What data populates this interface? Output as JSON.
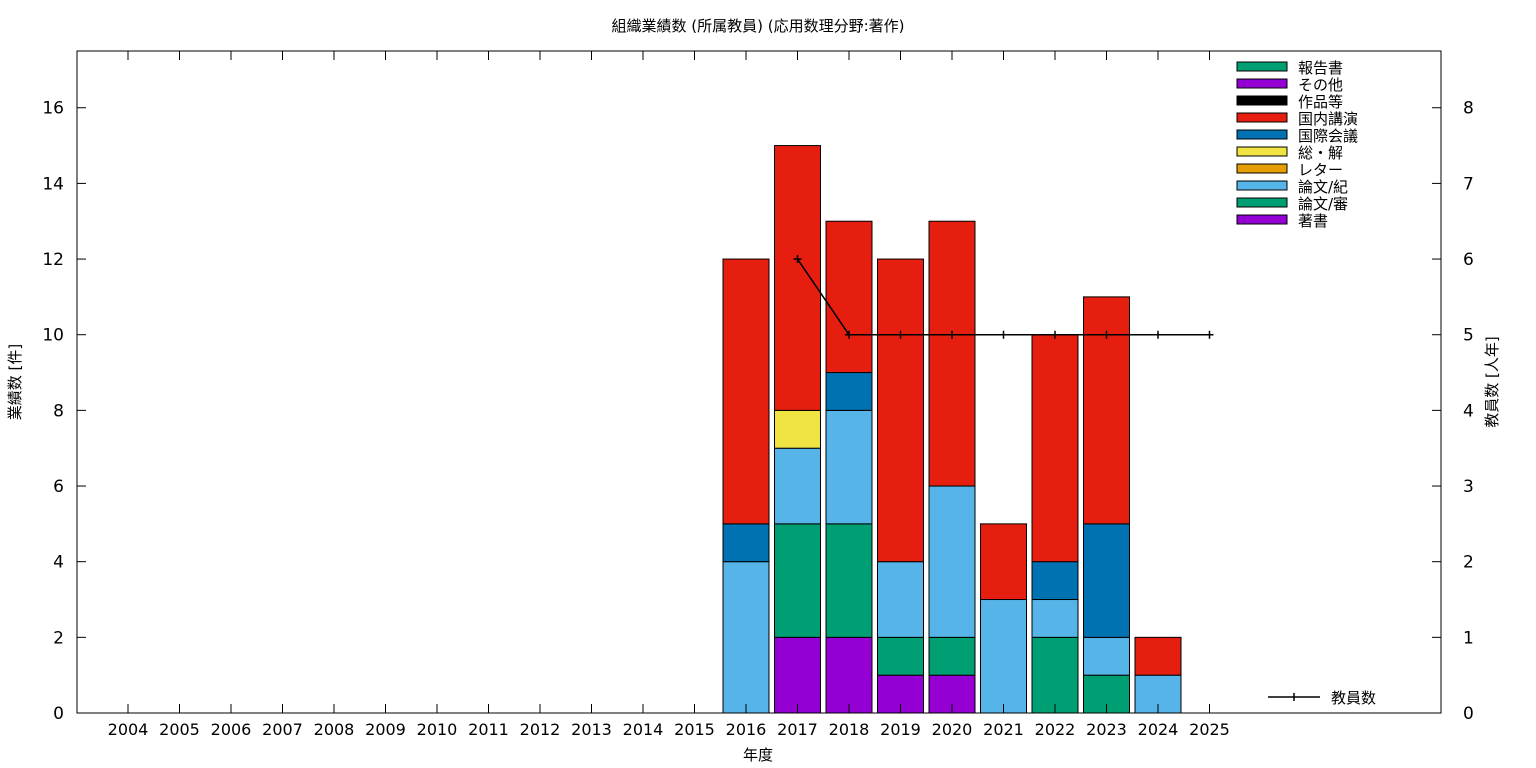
{
  "chart_data": {
    "type": "bar",
    "stacked": true,
    "title": "組織業績数 (所属教員) (応用数理分野:著作)",
    "xlabel": "年度",
    "ylabel": "業績数 [件]",
    "y2label": "教員数 [人年]",
    "ylim": [
      0,
      17.5
    ],
    "y2lim": [
      0,
      8.75
    ],
    "yticks": [
      0,
      2,
      4,
      6,
      8,
      10,
      12,
      14,
      16
    ],
    "y2ticks": [
      0,
      1,
      2,
      3,
      4,
      5,
      6,
      7,
      8
    ],
    "categories": [
      "2004",
      "2005",
      "2006",
      "2007",
      "2008",
      "2009",
      "2010",
      "2011",
      "2012",
      "2013",
      "2014",
      "2015",
      "2016",
      "2017",
      "2018",
      "2019",
      "2020",
      "2021",
      "2022",
      "2023",
      "2024",
      "2025"
    ],
    "series": [
      {
        "name": "著書",
        "color": "#9400d3",
        "values": [
          0,
          0,
          0,
          0,
          0,
          0,
          0,
          0,
          0,
          0,
          0,
          0,
          0,
          2,
          2,
          1,
          1,
          0,
          0,
          0,
          0,
          0
        ]
      },
      {
        "name": "論文/審",
        "color": "#009e73",
        "values": [
          0,
          0,
          0,
          0,
          0,
          0,
          0,
          0,
          0,
          0,
          0,
          0,
          0,
          3,
          3,
          1,
          1,
          0,
          2,
          1,
          0,
          0
        ]
      },
      {
        "name": "論文/紀",
        "color": "#56b4e9",
        "values": [
          0,
          0,
          0,
          0,
          0,
          0,
          0,
          0,
          0,
          0,
          0,
          0,
          4,
          2,
          3,
          2,
          4,
          3,
          1,
          1,
          1,
          0
        ]
      },
      {
        "name": "レター",
        "color": "#e69f00",
        "values": [
          0,
          0,
          0,
          0,
          0,
          0,
          0,
          0,
          0,
          0,
          0,
          0,
          0,
          0,
          0,
          0,
          0,
          0,
          0,
          0,
          0,
          0
        ]
      },
      {
        "name": "総・解",
        "color": "#f0e442",
        "values": [
          0,
          0,
          0,
          0,
          0,
          0,
          0,
          0,
          0,
          0,
          0,
          0,
          0,
          1,
          0,
          0,
          0,
          0,
          0,
          0,
          0,
          0
        ]
      },
      {
        "name": "国際会議",
        "color": "#0072b2",
        "values": [
          0,
          0,
          0,
          0,
          0,
          0,
          0,
          0,
          0,
          0,
          0,
          0,
          1,
          0,
          1,
          0,
          0,
          0,
          1,
          3,
          0,
          0
        ]
      },
      {
        "name": "国内講演",
        "color": "#e51e10",
        "values": [
          0,
          0,
          0,
          0,
          0,
          0,
          0,
          0,
          0,
          0,
          0,
          0,
          7,
          7,
          4,
          8,
          7,
          2,
          6,
          6,
          1,
          0
        ]
      },
      {
        "name": "作品等",
        "color": "#000000",
        "values": [
          0,
          0,
          0,
          0,
          0,
          0,
          0,
          0,
          0,
          0,
          0,
          0,
          0,
          0,
          0,
          0,
          0,
          0,
          0,
          0,
          0,
          0
        ]
      },
      {
        "name": "その他",
        "color": "#9400d3",
        "values": [
          0,
          0,
          0,
          0,
          0,
          0,
          0,
          0,
          0,
          0,
          0,
          0,
          0,
          0,
          0,
          0,
          0,
          0,
          0,
          0,
          0,
          0
        ]
      },
      {
        "name": "報告書",
        "color": "#009e73",
        "values": [
          0,
          0,
          0,
          0,
          0,
          0,
          0,
          0,
          0,
          0,
          0,
          0,
          0,
          0,
          0,
          0,
          0,
          0,
          0,
          0,
          0,
          0
        ]
      }
    ],
    "line": {
      "name": "教員数",
      "color": "#000000",
      "x": [
        "2017",
        "2018",
        "2019",
        "2020",
        "2021",
        "2022",
        "2023",
        "2024",
        "2025"
      ],
      "values": [
        6,
        5,
        5,
        5,
        5,
        5,
        5,
        5,
        5
      ]
    },
    "legend_position": "top-right",
    "line_legend_position": "bottom-right",
    "grid": false
  }
}
